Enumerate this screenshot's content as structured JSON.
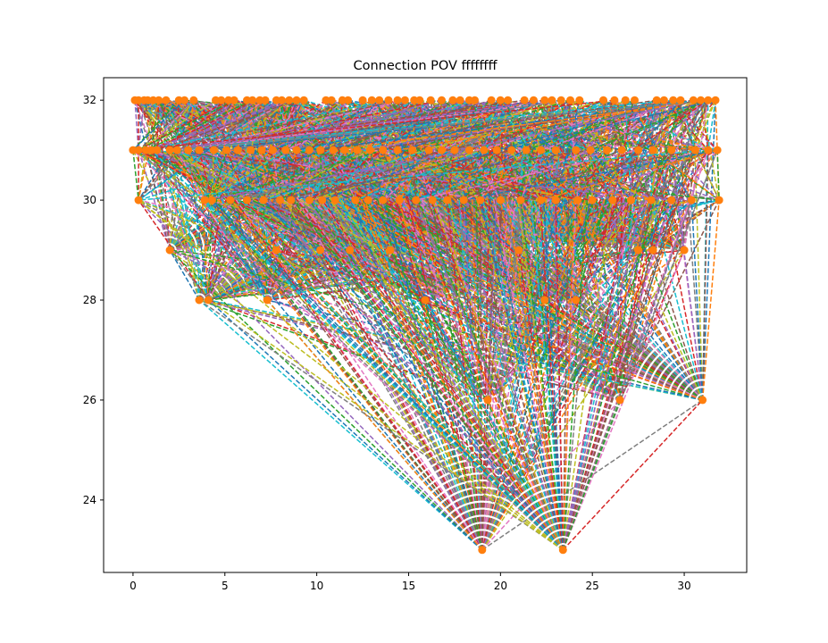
{
  "chart_data": {
    "type": "scatter",
    "title": "Connection POV ffffffff",
    "xlabel": "",
    "ylabel": "",
    "xlim": [
      -1.6,
      33.4
    ],
    "ylim": [
      22.55,
      32.45
    ],
    "x_ticks": [
      0,
      5,
      10,
      15,
      20,
      25,
      30
    ],
    "x_tick_labels": [
      "0",
      "5",
      "10",
      "15",
      "20",
      "25",
      "30"
    ],
    "y_ticks": [
      24,
      26,
      28,
      30,
      32
    ],
    "y_tick_labels": [
      "24",
      "26",
      "28",
      "30",
      "32"
    ],
    "grid": false,
    "legend": false,
    "marker_color": "#ff7f0e",
    "line_style": "dashed",
    "line_colors": [
      "#1f77b4",
      "#ff7f0e",
      "#2ca02c",
      "#d62728",
      "#9467bd",
      "#8c564b",
      "#e377c2",
      "#7f7f7f",
      "#bcbd22",
      "#17becf"
    ],
    "nodes": [
      {
        "x": 0.1,
        "y": 32
      },
      {
        "x": 0.3,
        "y": 32
      },
      {
        "x": 0.6,
        "y": 32
      },
      {
        "x": 0.8,
        "y": 32
      },
      {
        "x": 1.1,
        "y": 32
      },
      {
        "x": 1.4,
        "y": 32
      },
      {
        "x": 1.8,
        "y": 32
      },
      {
        "x": 2.5,
        "y": 32
      },
      {
        "x": 2.8,
        "y": 32
      },
      {
        "x": 3.3,
        "y": 32
      },
      {
        "x": 4.5,
        "y": 32
      },
      {
        "x": 4.8,
        "y": 32
      },
      {
        "x": 5.2,
        "y": 32
      },
      {
        "x": 5.5,
        "y": 32
      },
      {
        "x": 6.2,
        "y": 32
      },
      {
        "x": 6.5,
        "y": 32
      },
      {
        "x": 6.9,
        "y": 32
      },
      {
        "x": 7.2,
        "y": 32
      },
      {
        "x": 7.8,
        "y": 32
      },
      {
        "x": 8.1,
        "y": 32
      },
      {
        "x": 8.5,
        "y": 32
      },
      {
        "x": 8.9,
        "y": 32
      },
      {
        "x": 9.3,
        "y": 32
      },
      {
        "x": 10.5,
        "y": 32
      },
      {
        "x": 10.8,
        "y": 32
      },
      {
        "x": 11.4,
        "y": 32
      },
      {
        "x": 11.7,
        "y": 32
      },
      {
        "x": 12.5,
        "y": 32
      },
      {
        "x": 13.0,
        "y": 32
      },
      {
        "x": 13.4,
        "y": 32
      },
      {
        "x": 13.9,
        "y": 32
      },
      {
        "x": 14.4,
        "y": 32
      },
      {
        "x": 14.8,
        "y": 32
      },
      {
        "x": 15.3,
        "y": 32
      },
      {
        "x": 15.6,
        "y": 32
      },
      {
        "x": 16.2,
        "y": 32
      },
      {
        "x": 16.8,
        "y": 32
      },
      {
        "x": 17.4,
        "y": 32
      },
      {
        "x": 17.8,
        "y": 32
      },
      {
        "x": 18.3,
        "y": 32
      },
      {
        "x": 18.6,
        "y": 32
      },
      {
        "x": 19.5,
        "y": 32
      },
      {
        "x": 20.0,
        "y": 32
      },
      {
        "x": 20.4,
        "y": 32
      },
      {
        "x": 21.3,
        "y": 32
      },
      {
        "x": 21.8,
        "y": 32
      },
      {
        "x": 22.4,
        "y": 32
      },
      {
        "x": 22.8,
        "y": 32
      },
      {
        "x": 23.3,
        "y": 32
      },
      {
        "x": 23.8,
        "y": 32
      },
      {
        "x": 24.3,
        "y": 32
      },
      {
        "x": 25.6,
        "y": 32
      },
      {
        "x": 26.2,
        "y": 32
      },
      {
        "x": 26.8,
        "y": 32
      },
      {
        "x": 27.3,
        "y": 32
      },
      {
        "x": 28.5,
        "y": 32
      },
      {
        "x": 28.9,
        "y": 32
      },
      {
        "x": 29.4,
        "y": 32
      },
      {
        "x": 29.8,
        "y": 32
      },
      {
        "x": 30.5,
        "y": 32
      },
      {
        "x": 30.9,
        "y": 32
      },
      {
        "x": 31.3,
        "y": 32
      },
      {
        "x": 31.7,
        "y": 32
      },
      {
        "x": 0.0,
        "y": 31
      },
      {
        "x": 0.3,
        "y": 31
      },
      {
        "x": 0.7,
        "y": 31
      },
      {
        "x": 1.0,
        "y": 31
      },
      {
        "x": 1.3,
        "y": 31
      },
      {
        "x": 2.0,
        "y": 31
      },
      {
        "x": 2.4,
        "y": 31
      },
      {
        "x": 3.0,
        "y": 31
      },
      {
        "x": 3.6,
        "y": 31
      },
      {
        "x": 4.4,
        "y": 31
      },
      {
        "x": 5.1,
        "y": 31
      },
      {
        "x": 5.7,
        "y": 31
      },
      {
        "x": 6.4,
        "y": 31
      },
      {
        "x": 7.0,
        "y": 31
      },
      {
        "x": 7.6,
        "y": 31
      },
      {
        "x": 8.3,
        "y": 31
      },
      {
        "x": 8.9,
        "y": 31
      },
      {
        "x": 9.6,
        "y": 31
      },
      {
        "x": 10.2,
        "y": 31
      },
      {
        "x": 10.9,
        "y": 31
      },
      {
        "x": 11.5,
        "y": 31
      },
      {
        "x": 12.2,
        "y": 31
      },
      {
        "x": 12.9,
        "y": 31
      },
      {
        "x": 13.6,
        "y": 31
      },
      {
        "x": 14.4,
        "y": 31
      },
      {
        "x": 15.2,
        "y": 31
      },
      {
        "x": 16.1,
        "y": 31
      },
      {
        "x": 16.8,
        "y": 31
      },
      {
        "x": 17.5,
        "y": 31
      },
      {
        "x": 18.3,
        "y": 31
      },
      {
        "x": 19.1,
        "y": 31
      },
      {
        "x": 19.8,
        "y": 31
      },
      {
        "x": 20.6,
        "y": 31
      },
      {
        "x": 21.4,
        "y": 31
      },
      {
        "x": 22.2,
        "y": 31
      },
      {
        "x": 23.0,
        "y": 31
      },
      {
        "x": 24.1,
        "y": 31
      },
      {
        "x": 24.9,
        "y": 31
      },
      {
        "x": 25.8,
        "y": 31
      },
      {
        "x": 26.6,
        "y": 31
      },
      {
        "x": 27.5,
        "y": 31
      },
      {
        "x": 28.3,
        "y": 31
      },
      {
        "x": 29.3,
        "y": 31
      },
      {
        "x": 30.6,
        "y": 31
      },
      {
        "x": 31.3,
        "y": 31
      },
      {
        "x": 31.8,
        "y": 31
      },
      {
        "x": 0.3,
        "y": 30
      },
      {
        "x": 3.9,
        "y": 30
      },
      {
        "x": 4.3,
        "y": 30
      },
      {
        "x": 5.3,
        "y": 30
      },
      {
        "x": 6.2,
        "y": 30
      },
      {
        "x": 7.1,
        "y": 30
      },
      {
        "x": 8.0,
        "y": 30
      },
      {
        "x": 8.6,
        "y": 30
      },
      {
        "x": 9.6,
        "y": 30
      },
      {
        "x": 10.3,
        "y": 30
      },
      {
        "x": 11.0,
        "y": 30
      },
      {
        "x": 12.1,
        "y": 30
      },
      {
        "x": 12.8,
        "y": 30
      },
      {
        "x": 13.6,
        "y": 30
      },
      {
        "x": 14.5,
        "y": 30
      },
      {
        "x": 15.4,
        "y": 30
      },
      {
        "x": 16.3,
        "y": 30
      },
      {
        "x": 17.1,
        "y": 30
      },
      {
        "x": 18.0,
        "y": 30
      },
      {
        "x": 18.9,
        "y": 30
      },
      {
        "x": 20.0,
        "y": 30
      },
      {
        "x": 21.1,
        "y": 30
      },
      {
        "x": 22.2,
        "y": 30
      },
      {
        "x": 23.0,
        "y": 30
      },
      {
        "x": 24.2,
        "y": 30
      },
      {
        "x": 25.0,
        "y": 30
      },
      {
        "x": 26.1,
        "y": 30
      },
      {
        "x": 27.1,
        "y": 30
      },
      {
        "x": 28.2,
        "y": 30
      },
      {
        "x": 29.3,
        "y": 30
      },
      {
        "x": 30.4,
        "y": 30
      },
      {
        "x": 31.9,
        "y": 30
      },
      {
        "x": 2.0,
        "y": 29
      },
      {
        "x": 7.8,
        "y": 29
      },
      {
        "x": 10.2,
        "y": 29
      },
      {
        "x": 11.8,
        "y": 29
      },
      {
        "x": 14.0,
        "y": 29
      },
      {
        "x": 21.0,
        "y": 29
      },
      {
        "x": 27.5,
        "y": 29
      },
      {
        "x": 28.3,
        "y": 29
      },
      {
        "x": 30.0,
        "y": 29
      },
      {
        "x": 3.6,
        "y": 28
      },
      {
        "x": 4.1,
        "y": 28
      },
      {
        "x": 7.3,
        "y": 28
      },
      {
        "x": 15.9,
        "y": 28
      },
      {
        "x": 22.4,
        "y": 28
      },
      {
        "x": 24.1,
        "y": 28
      },
      {
        "x": 19.3,
        "y": 26
      },
      {
        "x": 26.5,
        "y": 26
      },
      {
        "x": 31.0,
        "y": 26
      },
      {
        "x": 19.0,
        "y": 23
      },
      {
        "x": 23.4,
        "y": 23
      }
    ]
  }
}
